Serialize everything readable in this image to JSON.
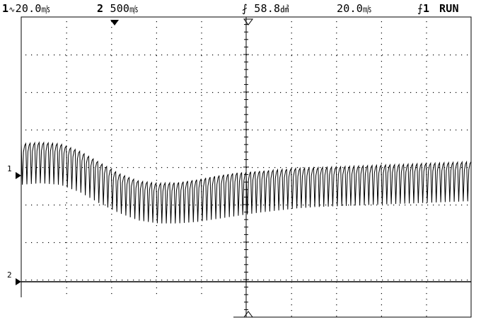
{
  "status": {
    "ch1_number": "1",
    "ch1_scale": "20.0",
    "ch2_number": "2",
    "ch2_scale": "500",
    "delay_value": "58.8",
    "timebase": "20.0",
    "trigger_source": "1",
    "run_state": "RUN"
  },
  "markers": {
    "ch1_ground": "1",
    "ch2_ground": "2"
  },
  "colors": {
    "background": "#ffffff",
    "trace": "#000000",
    "grid": "#000000"
  },
  "waveform": {
    "description_of_envelope_not_text": true,
    "envelope_upper": [
      0.95,
      0.97,
      0.95,
      0.85,
      0.7,
      0.55,
      0.45,
      0.42,
      0.43,
      0.47,
      0.52,
      0.56,
      0.58,
      0.6,
      0.62,
      0.63,
      0.64,
      0.65,
      0.66,
      0.67,
      0.68,
      0.69,
      0.7,
      0.71
    ],
    "envelope_lower": [
      0.4,
      0.42,
      0.4,
      0.3,
      0.15,
      0.02,
      -0.08,
      -0.12,
      -0.12,
      -0.1,
      -0.06,
      -0.02,
      0.02,
      0.05,
      0.08,
      0.1,
      0.11,
      0.12,
      0.13,
      0.14,
      0.15,
      0.16,
      0.17,
      0.18
    ],
    "cycles_per_division": 10
  }
}
